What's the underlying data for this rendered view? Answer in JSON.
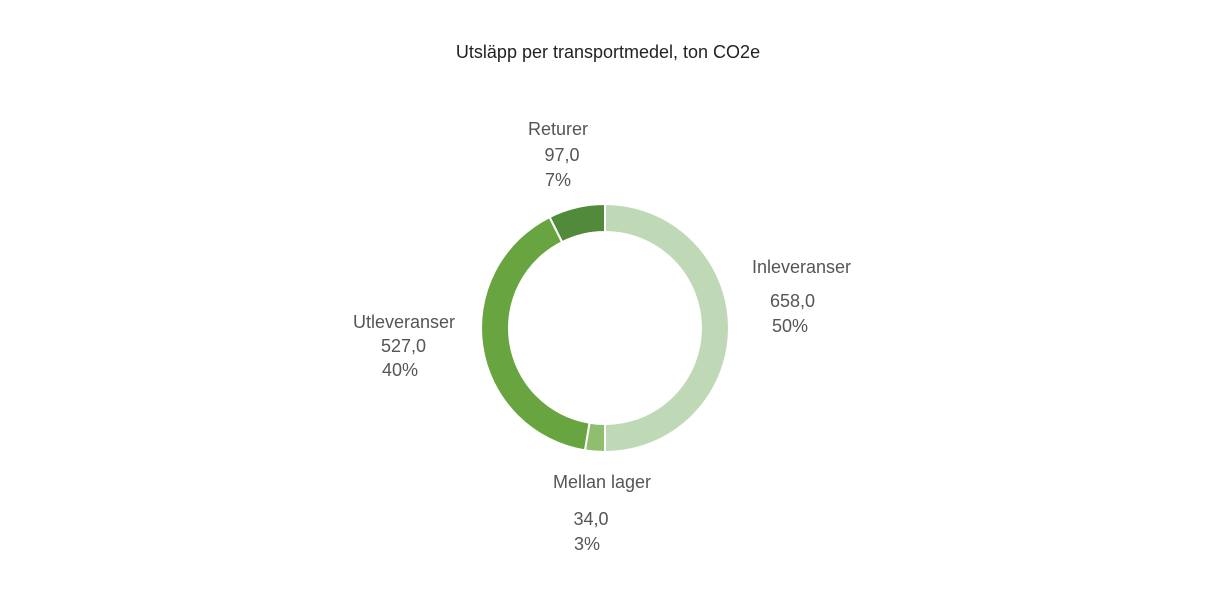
{
  "chart_data": {
    "type": "donut",
    "title": "Utsläpp per transportmedel, ton CO2e",
    "categories": [
      "Inleveranser",
      "Mellan lager",
      "Utleveranser",
      "Returer"
    ],
    "values": [
      658,
      34,
      527,
      97
    ],
    "value_labels": [
      "658,0",
      "34,0",
      "527,0",
      "97,0"
    ],
    "percents": [
      50,
      3,
      40,
      7
    ],
    "percent_labels": [
      "50%",
      "3%",
      "40%",
      "7%"
    ],
    "colors": [
      "#bfd8b5",
      "#8fbf6e",
      "#68a541",
      "#528a3c"
    ]
  }
}
